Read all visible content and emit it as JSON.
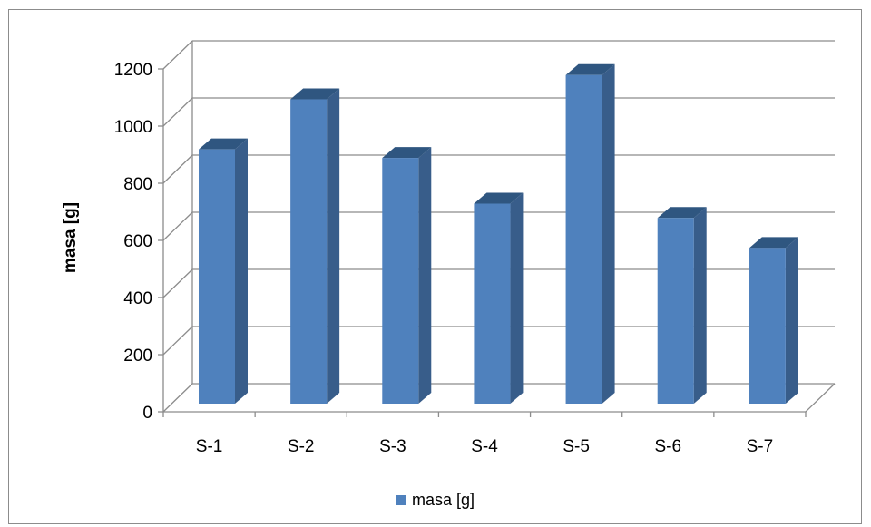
{
  "chart_data": {
    "type": "bar",
    "style": "3d-column",
    "categories": [
      "S-1",
      "S-2",
      "S-3",
      "S-4",
      "S-5",
      "S-6",
      "S-7"
    ],
    "series": [
      {
        "name": "masa [g]",
        "values": [
          890,
          1065,
          860,
          700,
          1150,
          650,
          545
        ],
        "color": "#4f81bd"
      }
    ],
    "ylabel": "masa [g]",
    "xlabel": "",
    "title": "",
    "ylim": [
      0,
      1200
    ],
    "yticks": [
      0,
      200,
      400,
      600,
      800,
      1000,
      1200
    ],
    "grid": true,
    "legend_position": "bottom"
  }
}
